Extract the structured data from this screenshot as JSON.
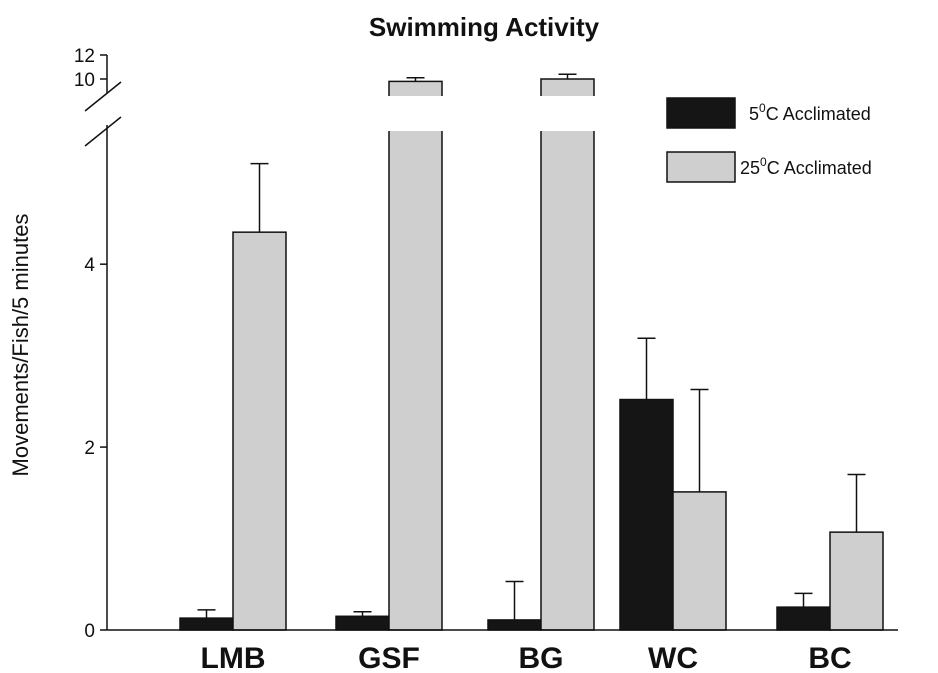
{
  "chart_data": {
    "type": "bar",
    "title": "Swimming Activity",
    "xlabel": "",
    "ylabel": "Movements/Fish/5 minutes",
    "categories": [
      "LMB",
      "GSF",
      "BG",
      "WC",
      "BC"
    ],
    "y_axis": {
      "broken": true,
      "lower_range": [
        0,
        5.5
      ],
      "upper_range": [
        9.5,
        12
      ],
      "lower_ticks": [
        0,
        2,
        4
      ],
      "upper_ticks": [
        10,
        12
      ]
    },
    "series": [
      {
        "name": "5°C Acclimated",
        "legend_base": "5",
        "legend_sup": "0",
        "legend_rest": "C Acclimated",
        "color": "#151515",
        "values": [
          0.13,
          0.15,
          0.11,
          2.52,
          0.25
        ],
        "error": [
          0.09,
          0.05,
          0.42,
          0.67,
          0.15
        ]
      },
      {
        "name": "25°C Acclimated",
        "legend_base": "25",
        "legend_sup": "0",
        "legend_rest": "C Acclimated",
        "color": "#cfcfcf",
        "values": [
          4.35,
          9.8,
          10.0,
          1.51,
          1.07
        ],
        "error": [
          0.75,
          0.3,
          0.4,
          1.12,
          0.63
        ]
      }
    ],
    "legend_position": "top-right",
    "grid": false
  }
}
